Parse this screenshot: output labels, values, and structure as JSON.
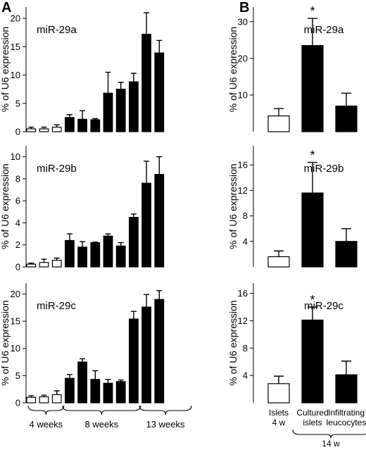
{
  "panel_letters": [
    "A",
    "B"
  ],
  "panel_a": {
    "ylabel": "% of U6 expression",
    "group_labels": [
      "4 weeks",
      "8 weeks",
      "13 weeks"
    ]
  },
  "panel_b": {
    "ylabel": "% of U6 expression",
    "categories": [
      [
        "Islets",
        "4 w"
      ],
      [
        "Cultured",
        "islets"
      ],
      [
        "Infiltrating",
        "leucocytes"
      ]
    ],
    "bracket_label": "14 w"
  },
  "chart_data": [
    {
      "type": "bar",
      "panel": "A",
      "title": "miR-29a",
      "ylabel": "% of U6 expression",
      "ylim": [
        0,
        22
      ],
      "yticks": [
        0,
        5,
        10,
        15,
        20
      ],
      "bar_fill": [
        "#ffffff",
        "#ffffff",
        "#ffffff",
        "#000000",
        "#000000",
        "#000000",
        "#000000",
        "#000000",
        "#000000",
        "#000000",
        "#000000"
      ],
      "values": [
        0.5,
        0.5,
        0.8,
        2.5,
        2.2,
        2.1,
        6.8,
        7.5,
        8.8,
        17.2,
        13.9
      ],
      "errors": [
        0.3,
        0.3,
        0.4,
        0.5,
        1.5,
        0.2,
        3.7,
        1.2,
        1.5,
        3.8,
        2.2
      ]
    },
    {
      "type": "bar",
      "panel": "A",
      "title": "miR-29b",
      "ylabel": "% of U6 expression",
      "ylim": [
        0,
        11
      ],
      "yticks": [
        0,
        2,
        4,
        6,
        8,
        10
      ],
      "bar_fill": [
        "#ffffff",
        "#ffffff",
        "#ffffff",
        "#000000",
        "#000000",
        "#000000",
        "#000000",
        "#000000",
        "#000000",
        "#000000",
        "#000000"
      ],
      "values": [
        0.25,
        0.4,
        0.6,
        2.4,
        1.8,
        2.2,
        2.8,
        1.9,
        4.5,
        7.6,
        8.4
      ],
      "errors": [
        0.1,
        0.3,
        0.2,
        0.6,
        0.5,
        0.05,
        0.2,
        0.3,
        0.3,
        2.0,
        1.6
      ]
    },
    {
      "type": "bar",
      "panel": "A",
      "title": "miR-29c",
      "ylabel": "% of U6 expression",
      "ylim": [
        0,
        22
      ],
      "yticks": [
        0,
        5,
        10,
        15,
        20
      ],
      "bar_fill": [
        "#ffffff",
        "#ffffff",
        "#ffffff",
        "#000000",
        "#000000",
        "#000000",
        "#000000",
        "#000000",
        "#000000",
        "#000000",
        "#000000"
      ],
      "values": [
        1.0,
        1.1,
        1.5,
        4.5,
        7.5,
        4.3,
        3.6,
        3.9,
        15.4,
        17.6,
        19.0
      ],
      "errors": [
        0.3,
        0.3,
        0.7,
        0.7,
        0.6,
        1.6,
        0.7,
        0.3,
        1.4,
        2.3,
        1.6
      ]
    },
    {
      "type": "bar",
      "panel": "B",
      "title": "miR-29a",
      "ylabel": "% of U6 expression",
      "ylim": [
        0,
        34
      ],
      "yticks": [
        10,
        20,
        30
      ],
      "bar_fill": [
        "#ffffff",
        "#000000",
        "#000000"
      ],
      "values": [
        4.3,
        23.5,
        7.0
      ],
      "errors": [
        2.0,
        7.4,
        3.5
      ],
      "significance": [
        "",
        "*",
        ""
      ]
    },
    {
      "type": "bar",
      "panel": "B",
      "title": "miR-29b",
      "ylabel": "% of U6 expression",
      "ylim": [
        0,
        19
      ],
      "yticks": [
        4,
        8,
        12,
        16
      ],
      "bar_fill": [
        "#ffffff",
        "#000000",
        "#000000"
      ],
      "values": [
        1.6,
        11.6,
        4.0
      ],
      "errors": [
        0.9,
        4.8,
        2.0
      ],
      "significance": [
        "",
        "*",
        ""
      ]
    },
    {
      "type": "bar",
      "panel": "B",
      "title": "miR-29c",
      "ylabel": "% of U6 expression",
      "ylim": [
        0,
        17.5
      ],
      "yticks": [
        4,
        8,
        12,
        16
      ],
      "bar_fill": [
        "#ffffff",
        "#000000",
        "#000000"
      ],
      "values": [
        2.8,
        12.1,
        4.1
      ],
      "errors": [
        1.1,
        1.9,
        2.0
      ],
      "significance": [
        "",
        "*",
        ""
      ]
    }
  ]
}
